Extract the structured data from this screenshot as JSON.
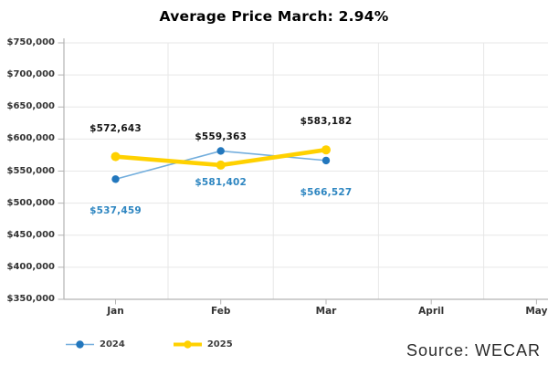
{
  "chart_data": {
    "type": "line",
    "title": "Average Price March: 2.94%",
    "categories": [
      "Jan",
      "Feb",
      "Mar",
      "April",
      "May"
    ],
    "series": [
      {
        "name": "2024",
        "values": [
          537459,
          581402,
          566527
        ],
        "labels": [
          "$537,459",
          "$581,402",
          "$566,527"
        ],
        "line_color": "#73aedd",
        "marker_color": "#2277bd",
        "label_color": "#2e86c1",
        "line_width": 1.6,
        "marker_radius": 4.2,
        "label_position": "below"
      },
      {
        "name": "2025",
        "values": [
          572643,
          559363,
          583182
        ],
        "labels": [
          "$572,643",
          "$559,363",
          "$583,182"
        ],
        "line_color": "#ffd100",
        "marker_color": "#ffd100",
        "label_color": "#151515",
        "line_width": 4.6,
        "marker_radius": 5,
        "label_position": "above"
      }
    ],
    "ylim": [
      350000,
      750000
    ],
    "ytick_step": 50000,
    "ytick_labels": [
      "$750,000",
      "$700,000",
      "$650,000",
      "$600,000",
      "$550,000",
      "$500,000",
      "$450,000",
      "$400,000",
      "$350,000"
    ],
    "grid": true,
    "legend_position": "bottom-left",
    "colors": {
      "grid": "#e7e7e7",
      "axis": "#b3b3b3",
      "background": "#ffffff"
    }
  },
  "source": {
    "label": "Source: WECAR"
  }
}
